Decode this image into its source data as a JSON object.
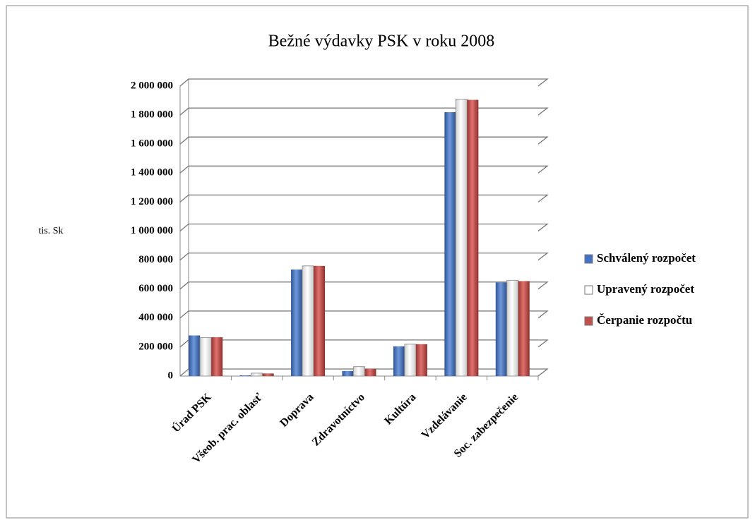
{
  "chart_data": {
    "type": "bar",
    "title": "Bežné výdavky PSK v roku 2008",
    "y_axis_label": "tis. Sk",
    "categories": [
      "Úrad PSK",
      "Všeob. prac. oblasť",
      "Doprava",
      "Zdravotníctvo",
      "Kultúra",
      "Vzdelávanie",
      "Soc. zabezpečenie"
    ],
    "series": [
      {
        "name": "Schválený rozpočet",
        "color": "#4472c4",
        "values": [
          280000,
          5000,
          735000,
          35000,
          205000,
          1820000,
          645000
        ]
      },
      {
        "name": "Upravený rozpočet",
        "color": "#ffffff",
        "values": [
          265000,
          20000,
          760000,
          65000,
          220000,
          1910000,
          660000
        ]
      },
      {
        "name": "Čerpanie rozpočtu",
        "color": "#c0504d",
        "values": [
          268000,
          18000,
          760000,
          50000,
          220000,
          1905000,
          655000
        ]
      }
    ],
    "ylim": [
      0,
      2000000
    ],
    "yticks": [
      0,
      {
        "value": 200000,
        "label": "200 000"
      },
      {
        "value": 400000,
        "label": "400 000"
      },
      {
        "value": 600000,
        "label": "600 000"
      },
      {
        "value": 800000,
        "label": "800 000"
      },
      {
        "value": 1000000,
        "label": "1 000 000"
      },
      {
        "value": 1200000,
        "label": "1 200 000"
      },
      {
        "value": 1400000,
        "label": "1 400 000"
      },
      {
        "value": 1600000,
        "label": "1 600 000"
      },
      {
        "value": 1800000,
        "label": "1 800 000"
      },
      {
        "value": 2000000,
        "label": "2 000 000"
      }
    ],
    "grid": true,
    "legend": "right"
  }
}
